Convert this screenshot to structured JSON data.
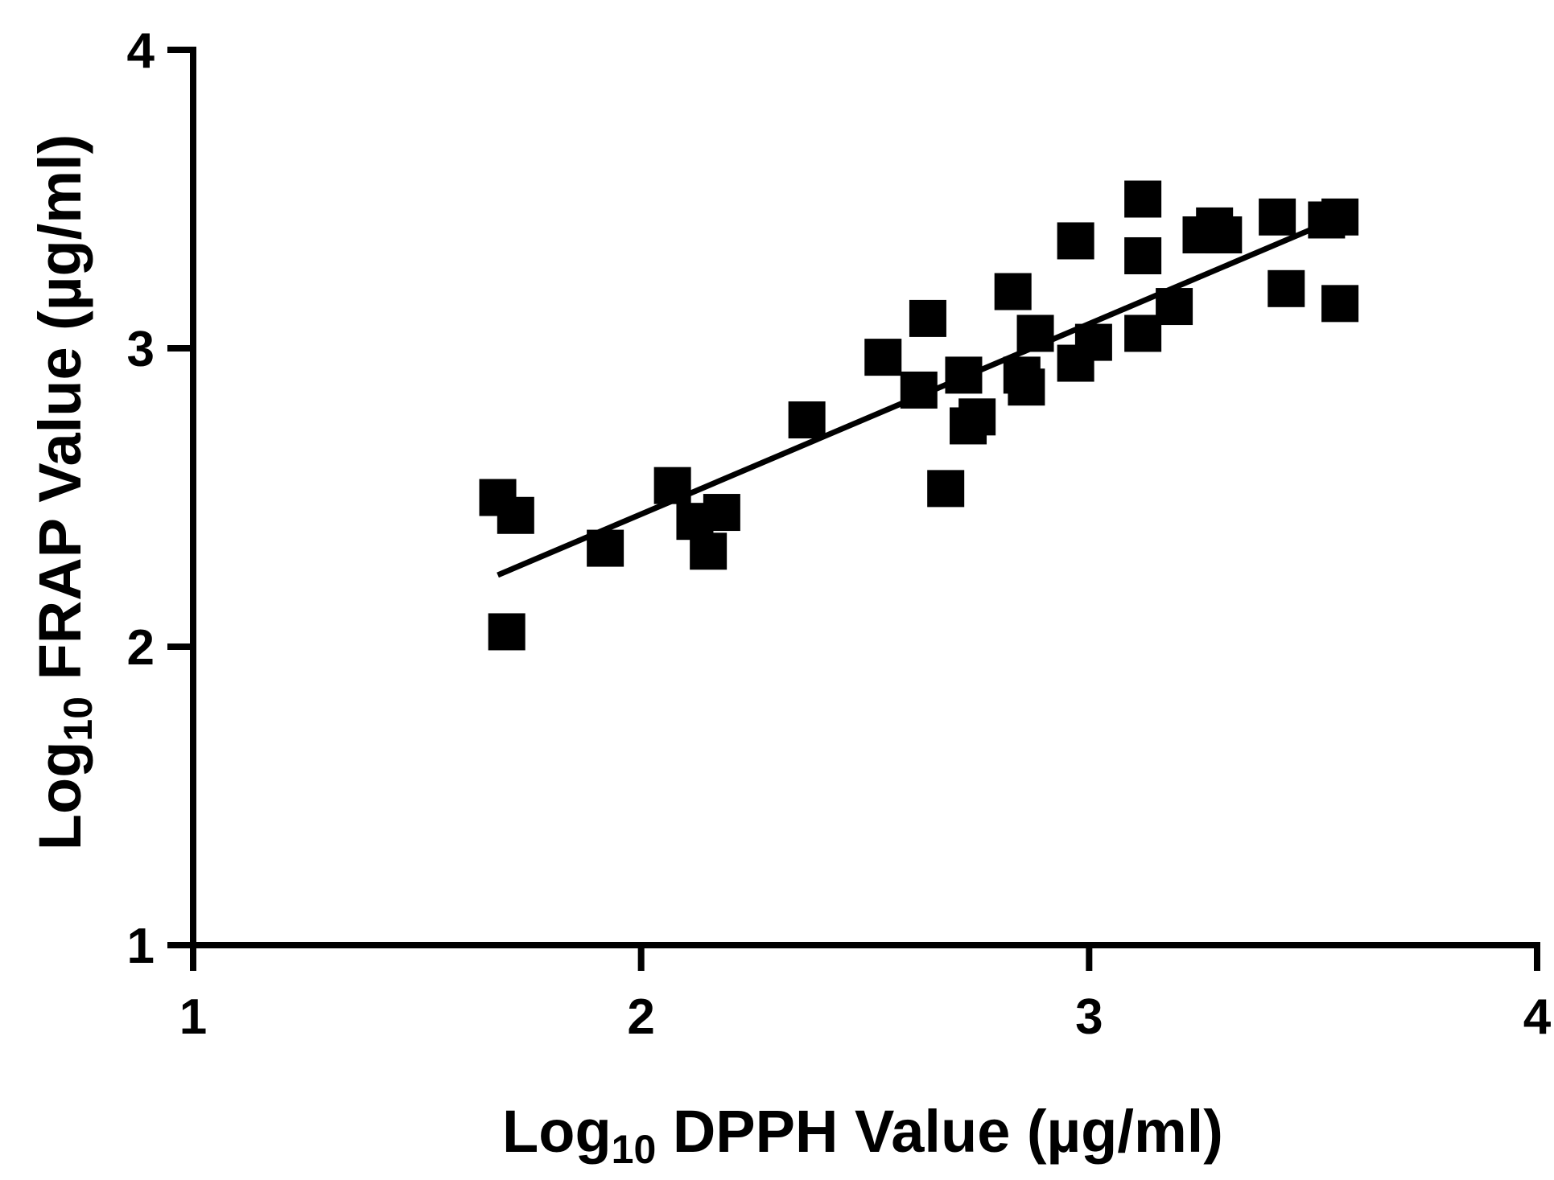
{
  "chart_data": {
    "type": "scatter",
    "title": "",
    "xlabel": {
      "prefix": "Log",
      "subscript": "10",
      "suffix": " DPPH Value (µg/ml)"
    },
    "ylabel": {
      "prefix": "Log",
      "subscript": "10",
      "suffix": " FRAP Value (µg/ml)"
    },
    "xlim": [
      1,
      4
    ],
    "ylim": [
      1,
      4
    ],
    "x_ticks": [
      1,
      2,
      3,
      4
    ],
    "y_ticks": [
      1,
      2,
      3,
      4
    ],
    "x_tick_labels": [
      "1",
      "2",
      "3",
      "4"
    ],
    "y_tick_labels": [
      "1",
      "2",
      "3",
      "4"
    ],
    "grid": false,
    "legend": "none",
    "marker": "square",
    "marker_color": "#000000",
    "points": [
      {
        "x": 1.68,
        "y": 2.5
      },
      {
        "x": 1.72,
        "y": 2.44
      },
      {
        "x": 1.7,
        "y": 2.05
      },
      {
        "x": 1.92,
        "y": 2.33
      },
      {
        "x": 2.07,
        "y": 2.54
      },
      {
        "x": 2.12,
        "y": 2.42
      },
      {
        "x": 2.15,
        "y": 2.32
      },
      {
        "x": 2.18,
        "y": 2.45
      },
      {
        "x": 2.37,
        "y": 2.76
      },
      {
        "x": 2.54,
        "y": 2.97
      },
      {
        "x": 2.62,
        "y": 2.86
      },
      {
        "x": 2.64,
        "y": 3.1
      },
      {
        "x": 2.68,
        "y": 2.53
      },
      {
        "x": 2.72,
        "y": 2.91
      },
      {
        "x": 2.73,
        "y": 2.74
      },
      {
        "x": 2.75,
        "y": 2.77
      },
      {
        "x": 2.83,
        "y": 3.19
      },
      {
        "x": 2.85,
        "y": 2.91
      },
      {
        "x": 2.86,
        "y": 2.87
      },
      {
        "x": 2.88,
        "y": 3.05
      },
      {
        "x": 2.97,
        "y": 3.36
      },
      {
        "x": 2.97,
        "y": 2.95
      },
      {
        "x": 3.01,
        "y": 3.02
      },
      {
        "x": 3.12,
        "y": 3.5
      },
      {
        "x": 3.12,
        "y": 3.31
      },
      {
        "x": 3.12,
        "y": 3.05
      },
      {
        "x": 3.19,
        "y": 3.14
      },
      {
        "x": 3.25,
        "y": 3.38
      },
      {
        "x": 3.28,
        "y": 3.41
      },
      {
        "x": 3.3,
        "y": 3.38
      },
      {
        "x": 3.42,
        "y": 3.44
      },
      {
        "x": 3.44,
        "y": 3.2
      },
      {
        "x": 3.53,
        "y": 3.43
      },
      {
        "x": 3.56,
        "y": 3.44
      },
      {
        "x": 3.56,
        "y": 3.15
      }
    ],
    "regression_line": {
      "x": [
        1.68,
        3.53
      ],
      "y": [
        2.24,
        3.42
      ]
    }
  }
}
